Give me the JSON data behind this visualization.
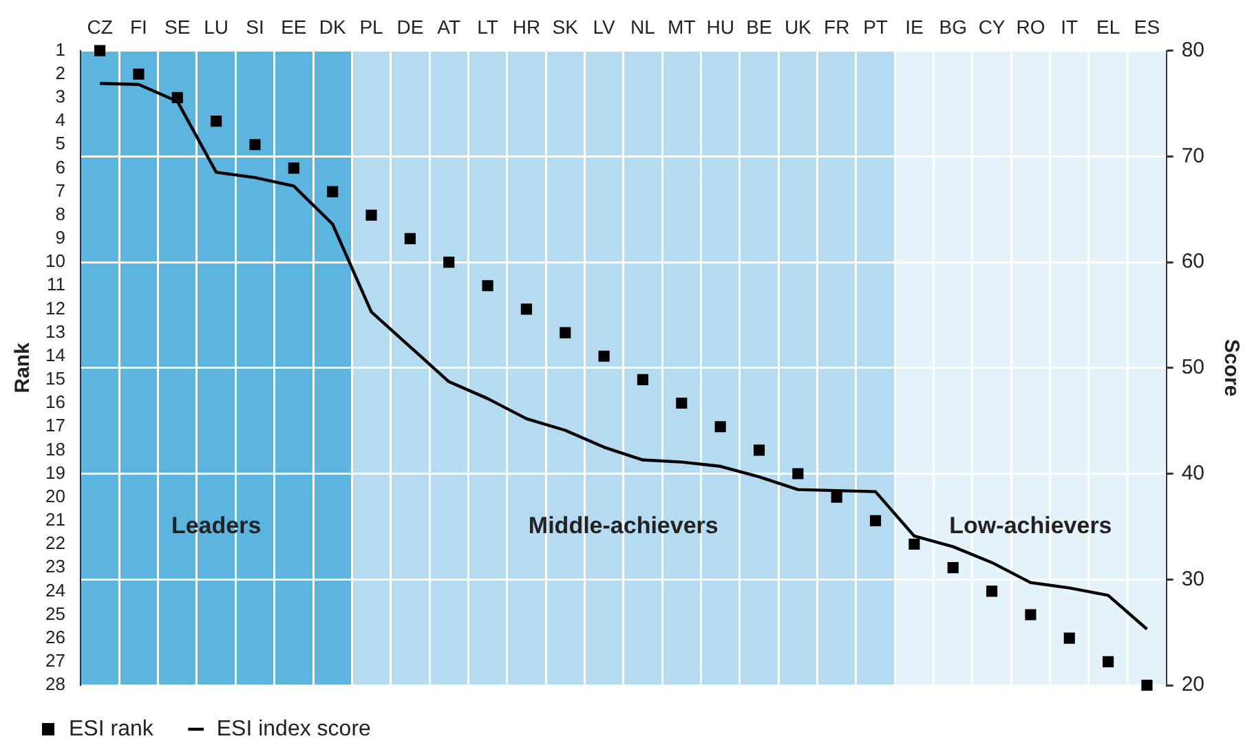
{
  "chart_data": {
    "type": "line",
    "categories": [
      "CZ",
      "FI",
      "SE",
      "LU",
      "SI",
      "EE",
      "DK",
      "PL",
      "DE",
      "AT",
      "LT",
      "HR",
      "SK",
      "LV",
      "NL",
      "MT",
      "HU",
      "BE",
      "UK",
      "FR",
      "PT",
      "IE",
      "BG",
      "CY",
      "RO",
      "IT",
      "EL",
      "ES"
    ],
    "series": [
      {
        "name": "ESI rank",
        "type": "scatter",
        "marker": "square",
        "color": "#000000",
        "values": [
          1,
          2,
          3,
          4,
          5,
          6,
          7,
          8,
          9,
          10,
          11,
          12,
          13,
          14,
          15,
          16,
          17,
          18,
          19,
          20,
          21,
          22,
          23,
          24,
          25,
          26,
          27,
          28
        ]
      },
      {
        "name": "ESI index score",
        "marker": "none",
        "axis": "y2",
        "color": "#000000",
        "values": [
          76.9,
          76.8,
          75.2,
          68.5,
          68.0,
          67.2,
          63.6,
          55.3,
          52.0,
          48.7,
          47.1,
          45.2,
          44.1,
          42.5,
          41.3,
          41.1,
          40.7,
          39.7,
          38.5,
          38.4,
          38.3,
          34.1,
          33.1,
          31.6,
          29.7,
          29.2,
          28.5,
          25.3
        ]
      }
    ],
    "ylabel": "Rank",
    "y2label": "Score",
    "ylim": [
      28,
      1
    ],
    "yticks": [
      1,
      2,
      3,
      4,
      5,
      6,
      7,
      8,
      9,
      10,
      11,
      12,
      13,
      14,
      15,
      16,
      17,
      18,
      19,
      20,
      21,
      22,
      23,
      24,
      25,
      26,
      27,
      28
    ],
    "y2lim": [
      20,
      80
    ],
    "y2ticks": [
      20,
      30,
      40,
      50,
      60,
      70,
      80
    ],
    "bands": [
      {
        "axis": "x",
        "from": "CZ",
        "to": "DK",
        "label": "Leaders",
        "color": "#5bb5df"
      },
      {
        "axis": "x",
        "from": "PL",
        "to": "PT",
        "label": "Middle-achievers",
        "color": "#b4dbf0"
      },
      {
        "axis": "x",
        "from": "IE",
        "to": "ES",
        "label": "Low-achievers",
        "color": "#e4f2fa"
      }
    ],
    "grid": true,
    "legend": "bottom left",
    "line_style": "solid"
  }
}
